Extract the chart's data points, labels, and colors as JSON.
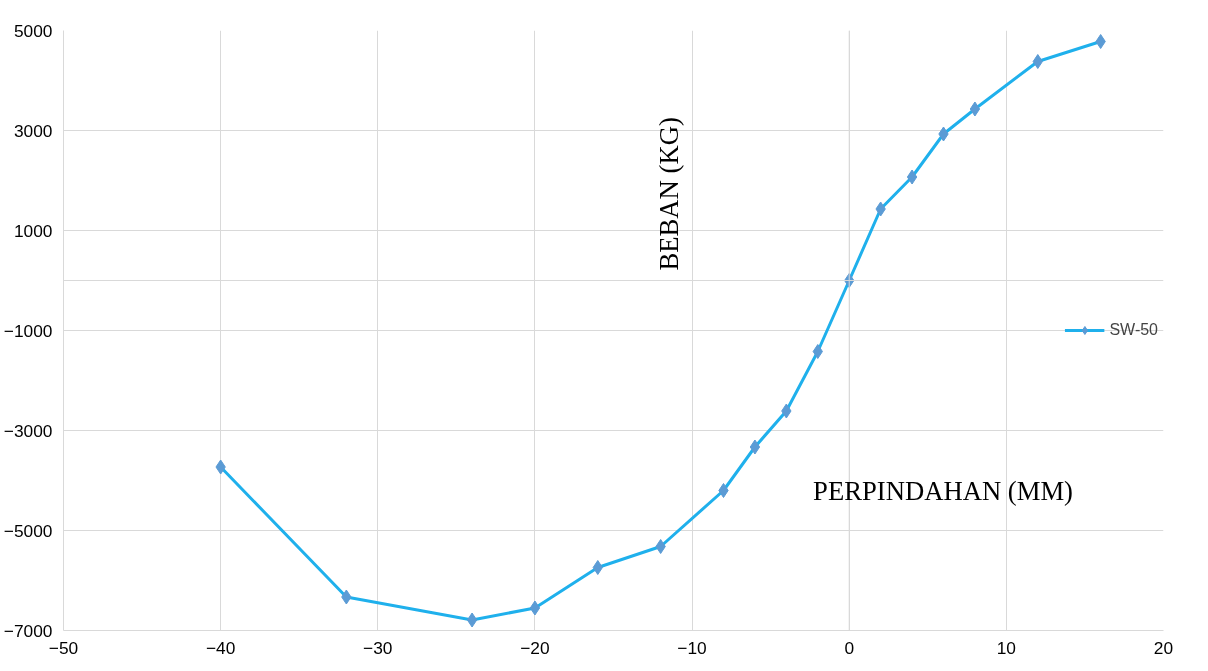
{
  "chart_data": {
    "type": "line",
    "xlabel": "PERPINDAHAN (MM)",
    "ylabel": "BEBAN (KG)",
    "xlim": [
      -50,
      20
    ],
    "xticks": [
      -50,
      -40,
      -30,
      -20,
      -10,
      0,
      10,
      20
    ],
    "ylim": [
      -7000,
      5000
    ],
    "yticks": [
      -7000,
      -5000,
      -3000,
      -1000,
      1000,
      3000,
      5000
    ],
    "grid": true,
    "legend": "right",
    "marker": "diamond",
    "series": [
      {
        "name": "SW-50",
        "color": "#1fb0ec",
        "x": [
          -40,
          -32,
          -24,
          -20,
          -16,
          -12,
          -8,
          -6,
          -4,
          -2,
          0,
          2,
          4,
          6,
          8,
          12,
          16
        ],
        "values": [
          -3730,
          -6330,
          -6790,
          -6550,
          -5740,
          -5320,
          -4200,
          -3330,
          -2610,
          -1420,
          0,
          1430,
          2070,
          2930,
          3430,
          4380,
          4780
        ]
      }
    ]
  }
}
